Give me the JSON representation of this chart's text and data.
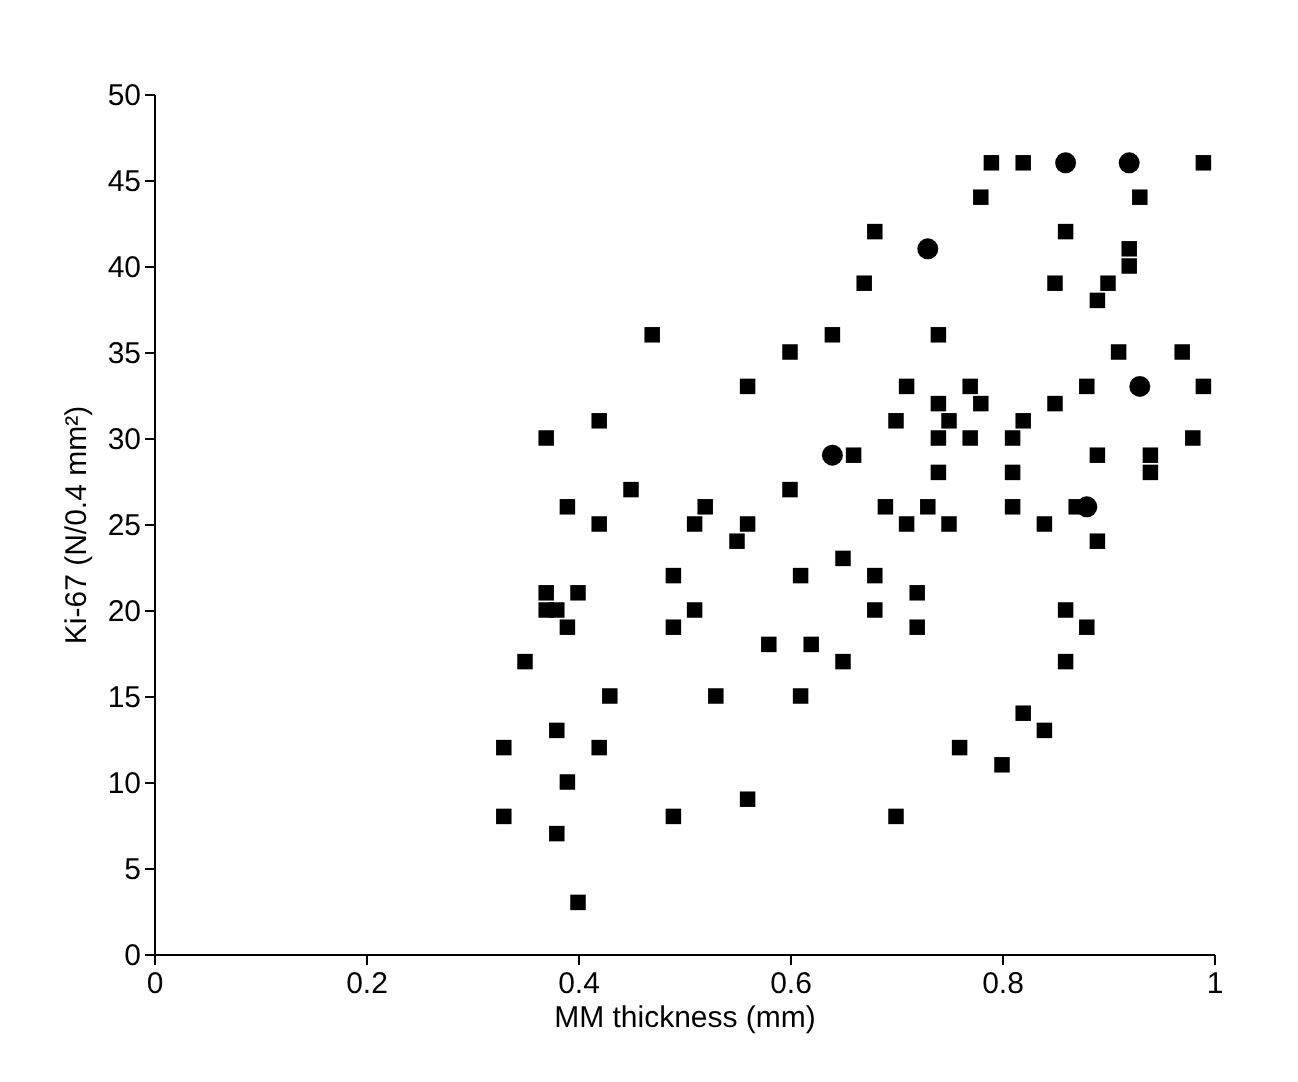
{
  "chart_data": {
    "type": "scatter",
    "xlabel": "MM thickness (mm)",
    "ylabel": "Ki-67 (N/0.4 mm²)",
    "xlim": [
      0,
      1
    ],
    "xticks": [
      0,
      0.2,
      0.4,
      0.6,
      0.8,
      1
    ],
    "ylim": [
      0,
      50
    ],
    "yticks": [
      0,
      5,
      10,
      15,
      20,
      25,
      30,
      35,
      40,
      45,
      50
    ],
    "grid": false,
    "series": [
      {
        "color": "#000000",
        "marker": "square",
        "x": [
          0.33,
          0.33,
          0.35,
          0.37,
          0.37,
          0.37,
          0.38,
          0.38,
          0.38,
          0.39,
          0.39,
          0.39,
          0.4,
          0.4,
          0.42,
          0.42,
          0.42,
          0.43,
          0.45,
          0.47,
          0.49,
          0.49,
          0.49,
          0.51,
          0.51,
          0.52,
          0.53,
          0.55,
          0.56,
          0.56,
          0.56,
          0.58,
          0.6,
          0.6,
          0.61,
          0.61,
          0.62,
          0.64,
          0.65,
          0.65,
          0.66,
          0.67,
          0.68,
          0.68,
          0.68,
          0.69,
          0.7,
          0.7,
          0.71,
          0.71,
          0.72,
          0.72,
          0.73,
          0.74,
          0.74,
          0.74,
          0.74,
          0.75,
          0.75,
          0.76,
          0.77,
          0.77,
          0.78,
          0.78,
          0.79,
          0.8,
          0.81,
          0.81,
          0.81,
          0.82,
          0.82,
          0.82,
          0.84,
          0.84,
          0.85,
          0.85,
          0.86,
          0.86,
          0.86,
          0.87,
          0.88,
          0.88,
          0.89,
          0.89,
          0.89,
          0.9,
          0.91,
          0.92,
          0.92,
          0.93,
          0.94,
          0.94,
          0.97,
          0.98,
          0.99,
          0.99
        ],
        "values": [
          12,
          8,
          17,
          30,
          21,
          20,
          20,
          13,
          7,
          10,
          19,
          26,
          21,
          3,
          31,
          25,
          12,
          15,
          27,
          36,
          22,
          19,
          8,
          25,
          20,
          26,
          15,
          24,
          33,
          25,
          9,
          18,
          35,
          27,
          22,
          15,
          18,
          36,
          23,
          17,
          29,
          39,
          42,
          22,
          20,
          26,
          8,
          31,
          33,
          25,
          21,
          19,
          26,
          36,
          32,
          30,
          28,
          31,
          25,
          12,
          33,
          30,
          32,
          44,
          46,
          11,
          30,
          28,
          26,
          46,
          31,
          14,
          13,
          25,
          32,
          39,
          42,
          20,
          17,
          26,
          19,
          33,
          38,
          29,
          24,
          39,
          35,
          40,
          41,
          44,
          28,
          29,
          35,
          30,
          33,
          46
        ]
      },
      {
        "color": "#000000",
        "marker": "circle",
        "x": [
          0.64,
          0.73,
          0.86,
          0.88,
          0.92,
          0.93
        ],
        "values": [
          29,
          41,
          46,
          26,
          46,
          33
        ]
      }
    ]
  }
}
